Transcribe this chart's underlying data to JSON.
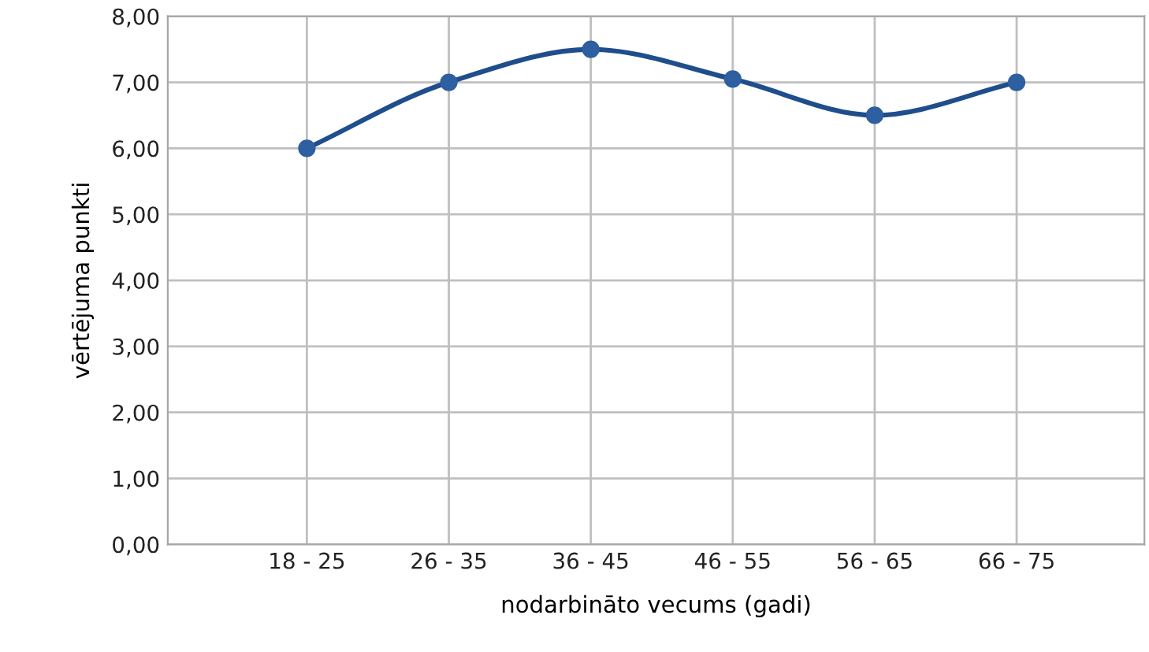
{
  "chart_data": {
    "type": "line",
    "xlabel": "nodarbināto vecums (gadi)",
    "ylabel": "vērtējuma punkti",
    "categories": [
      "18 - 25",
      "26 - 35",
      "36 - 45",
      "46 - 55",
      "56 - 65",
      "66 - 75"
    ],
    "series": [
      {
        "color": "#1f4e8c",
        "values": [
          6.0,
          7.0,
          7.5,
          7.05,
          6.5,
          7.0
        ]
      }
    ],
    "marker": "circle",
    "line_style": "solid",
    "grid": true,
    "ylim": [
      0,
      8
    ],
    "yticks": [
      {
        "value": 0,
        "label": "0,00"
      },
      {
        "value": 1,
        "label": "1,00"
      },
      {
        "value": 2,
        "label": "2,00"
      },
      {
        "value": 3,
        "label": "3,00"
      },
      {
        "value": 4,
        "label": "4,00"
      },
      {
        "value": 5,
        "label": "5,00"
      },
      {
        "value": 6,
        "label": "6,00"
      },
      {
        "value": 7,
        "label": "7,00"
      },
      {
        "value": 8,
        "label": "8,00"
      }
    ]
  }
}
